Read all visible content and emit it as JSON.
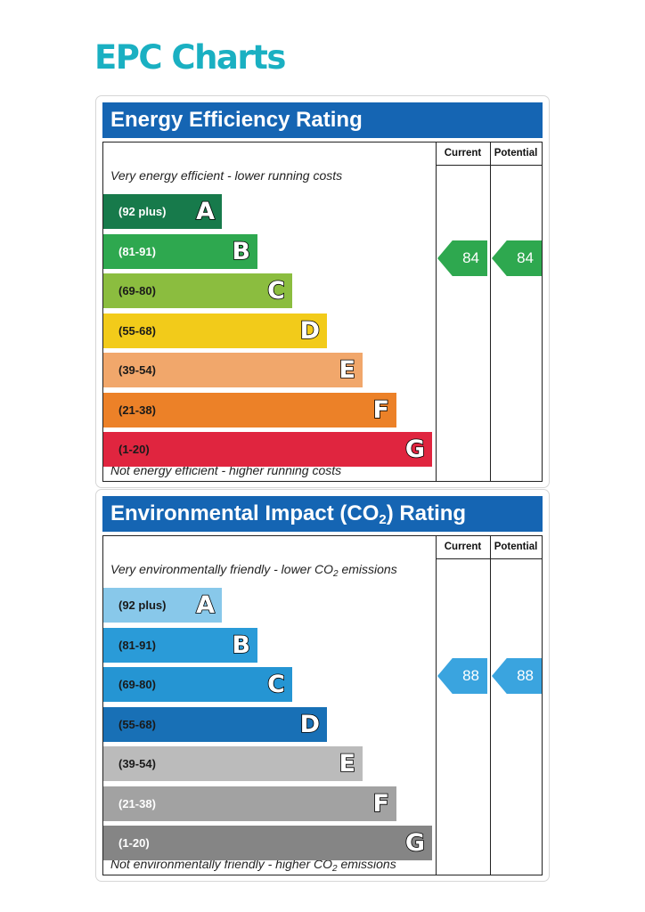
{
  "page": {
    "title": "EPC Charts"
  },
  "colors": {
    "header": "#1565b3",
    "title": "#1ab0c2",
    "energy_bars": [
      "#177a4b",
      "#2ea84f",
      "#8bbd3f",
      "#f2cb1a",
      "#f1a76b",
      "#ec8128",
      "#e0253f"
    ],
    "env_bars": [
      "#88c8ea",
      "#2a9bd8",
      "#2595d3",
      "#1870b6",
      "#bbbbbb",
      "#a2a2a2",
      "#858585"
    ],
    "energy_arrow": "#2ea84f",
    "env_arrow": "#3aa4df"
  },
  "columns": {
    "current": "Current",
    "potential": "Potential"
  },
  "energy": {
    "title": "Energy Efficiency Rating",
    "top_caption": "Very energy efficient - lower running costs",
    "bottom_caption": "Not energy efficient - higher running costs",
    "bands": [
      {
        "range": "(92 plus)",
        "letter": "A"
      },
      {
        "range": "(81-91)",
        "letter": "B"
      },
      {
        "range": "(69-80)",
        "letter": "C"
      },
      {
        "range": "(55-68)",
        "letter": "D"
      },
      {
        "range": "(39-54)",
        "letter": "E"
      },
      {
        "range": "(21-38)",
        "letter": "F"
      },
      {
        "range": "(1-20)",
        "letter": "G"
      }
    ],
    "current": "84",
    "potential": "84"
  },
  "environment": {
    "title_main": "Environmental Impact (CO",
    "title_sub": "2",
    "title_end": ") Rating",
    "top_caption_main": "Very environmentally friendly - lower CO",
    "top_caption_sub": "2",
    "top_caption_end": " emissions",
    "bottom_caption_main": "Not environmentally friendly - higher CO",
    "bottom_caption_sub": "2",
    "bottom_caption_end": " emissions",
    "bands": [
      {
        "range": "(92 plus)",
        "letter": "A"
      },
      {
        "range": "(81-91)",
        "letter": "B"
      },
      {
        "range": "(69-80)",
        "letter": "C"
      },
      {
        "range": "(55-68)",
        "letter": "D"
      },
      {
        "range": "(39-54)",
        "letter": "E"
      },
      {
        "range": "(21-38)",
        "letter": "F"
      },
      {
        "range": "(1-20)",
        "letter": "G"
      }
    ],
    "current": "88",
    "potential": "88"
  },
  "chart_data": [
    {
      "type": "bar",
      "title": "Energy Efficiency Rating",
      "categories": [
        "A",
        "B",
        "C",
        "D",
        "E",
        "F",
        "G"
      ],
      "band_ranges": [
        "(92 plus)",
        "(81-91)",
        "(69-80)",
        "(55-68)",
        "(39-54)",
        "(21-38)",
        "(1-20)"
      ],
      "current": 84,
      "potential": 84
    },
    {
      "type": "bar",
      "title": "Environmental Impact (CO2) Rating",
      "categories": [
        "A",
        "B",
        "C",
        "D",
        "E",
        "F",
        "G"
      ],
      "band_ranges": [
        "(92 plus)",
        "(81-91)",
        "(69-80)",
        "(55-68)",
        "(39-54)",
        "(21-38)",
        "(1-20)"
      ],
      "current": 88,
      "potential": 88
    }
  ]
}
